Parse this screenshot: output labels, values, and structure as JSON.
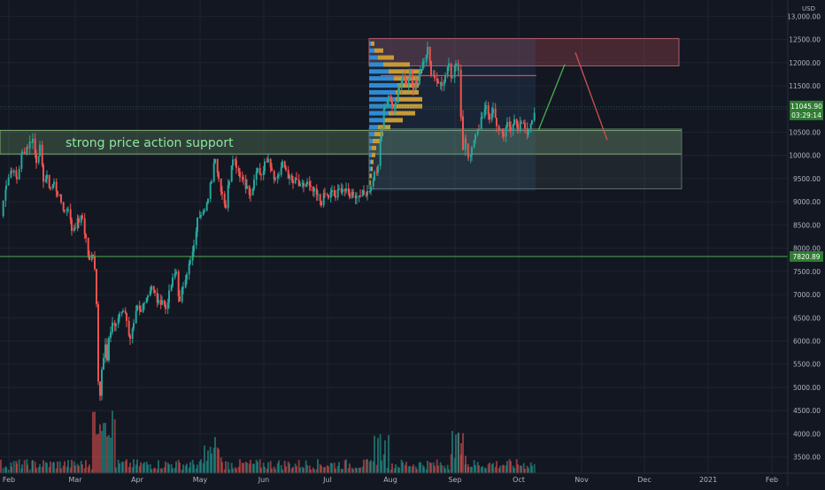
{
  "chart_data": {
    "type": "candlestick",
    "symbol_currency": "USD",
    "annotation": "strong price action support",
    "x_labels": [
      "Feb",
      "Mar",
      "Apr",
      "May",
      "Jun",
      "Jul",
      "Aug",
      "Sep",
      "Oct",
      "Nov",
      "Dec",
      "2021",
      "Feb"
    ],
    "y_ticks": [
      13000,
      12500,
      12000,
      11500,
      11000,
      10500,
      10000,
      9500,
      9000,
      8500,
      8000,
      7500,
      7000,
      6500,
      6000,
      5500,
      5000,
      4500,
      4000,
      3500
    ],
    "y_tick_labels": [
      "13,000.00",
      "12500.00",
      "12000.00",
      "11500.00",
      "11000.00",
      "10500.00",
      "10000.00",
      "9500.00",
      "9000.00",
      "8500.00",
      "8000.00",
      "7500.00",
      "7000.00",
      "6500.00",
      "6000.00",
      "5500.00",
      "5000.00",
      "4500.00",
      "4000.00",
      "3500.00"
    ],
    "ylim": [
      3150,
      13350
    ],
    "current_price": {
      "label": "11045.90",
      "value": 11045.9,
      "countdown": "03:29:14"
    },
    "reference_level": {
      "label": "7820.89",
      "value": 7820.89
    },
    "horizontal_line": {
      "value": 11720
    },
    "zones": [
      {
        "name": "support",
        "top": 10540,
        "bottom": 10030
      },
      {
        "name": "resistance",
        "top": 12520,
        "bottom": 11930
      },
      {
        "name": "range",
        "top": 10570,
        "bottom": 9280
      },
      {
        "name": "volume-profile",
        "top": 12520,
        "bottom": 9230
      }
    ],
    "projection": [
      {
        "date_index": 0,
        "price": 10530
      },
      {
        "date_index": 1,
        "price": 11960
      },
      {
        "date_index": 2,
        "price": 12220
      },
      {
        "date_index": 3,
        "price": 10330
      }
    ],
    "price_path": [
      [
        0,
        8700
      ],
      [
        6,
        9400
      ],
      [
        12,
        9700
      ],
      [
        18,
        9500
      ],
      [
        24,
        10050
      ],
      [
        30,
        10200
      ],
      [
        36,
        10350
      ],
      [
        40,
        9900
      ],
      [
        44,
        10150
      ],
      [
        48,
        9500
      ],
      [
        52,
        9500
      ],
      [
        56,
        9300
      ],
      [
        60,
        9400
      ],
      [
        64,
        9200
      ],
      [
        68,
        9000
      ],
      [
        72,
        8800
      ],
      [
        76,
        8900
      ],
      [
        80,
        8400
      ],
      [
        84,
        8500
      ],
      [
        88,
        8600
      ],
      [
        92,
        8650
      ],
      [
        96,
        8200
      ],
      [
        100,
        7700
      ],
      [
        104,
        7900
      ],
      [
        106,
        7600
      ],
      [
        108,
        6800
      ],
      [
        110,
        5200
      ],
      [
        112,
        4900
      ],
      [
        114,
        5400
      ],
      [
        116,
        5600
      ],
      [
        118,
        5900
      ],
      [
        120,
        5500
      ],
      [
        122,
        6100
      ],
      [
        124,
        6200
      ],
      [
        126,
        6400
      ],
      [
        130,
        6300
      ],
      [
        134,
        6600
      ],
      [
        138,
        6700
      ],
      [
        142,
        6500
      ],
      [
        146,
        6000
      ],
      [
        150,
        6300
      ],
      [
        154,
        6700
      ],
      [
        158,
        6600
      ],
      [
        162,
        6900
      ],
      [
        166,
        7000
      ],
      [
        170,
        7200
      ],
      [
        174,
        7000
      ],
      [
        178,
        6800
      ],
      [
        182,
        6900
      ],
      [
        186,
        6700
      ],
      [
        190,
        7000
      ],
      [
        194,
        7300
      ],
      [
        198,
        7500
      ],
      [
        202,
        6800
      ],
      [
        206,
        7200
      ],
      [
        210,
        7500
      ],
      [
        214,
        7700
      ],
      [
        218,
        8000
      ],
      [
        222,
        8600
      ],
      [
        226,
        8800
      ],
      [
        230,
        8900
      ],
      [
        234,
        9000
      ],
      [
        238,
        9500
      ],
      [
        242,
        10000
      ],
      [
        246,
        9500
      ],
      [
        250,
        9200
      ],
      [
        254,
        8900
      ],
      [
        258,
        9500
      ],
      [
        262,
        10000
      ],
      [
        266,
        9800
      ],
      [
        270,
        9600
      ],
      [
        274,
        9500
      ],
      [
        278,
        9300
      ],
      [
        282,
        9100
      ],
      [
        286,
        9400
      ],
      [
        290,
        9700
      ],
      [
        294,
        9600
      ],
      [
        298,
        9800
      ],
      [
        302,
        10000
      ],
      [
        306,
        9700
      ],
      [
        310,
        9500
      ],
      [
        314,
        9600
      ],
      [
        318,
        9800
      ],
      [
        322,
        9700
      ],
      [
        326,
        9500
      ],
      [
        330,
        9400
      ],
      [
        334,
        9450
      ],
      [
        338,
        9300
      ],
      [
        342,
        9350
      ],
      [
        346,
        9400
      ],
      [
        350,
        9250
      ],
      [
        354,
        9200
      ],
      [
        358,
        9100
      ],
      [
        362,
        9000
      ],
      [
        366,
        9150
      ],
      [
        370,
        9100
      ],
      [
        374,
        9200
      ],
      [
        378,
        9100
      ],
      [
        382,
        9250
      ],
      [
        386,
        9300
      ],
      [
        390,
        9200
      ],
      [
        394,
        9150
      ],
      [
        398,
        9200
      ],
      [
        402,
        9100
      ],
      [
        406,
        9200
      ],
      [
        410,
        9150
      ],
      [
        414,
        9250
      ],
      [
        418,
        9300
      ],
      [
        422,
        9600
      ],
      [
        426,
        9700
      ],
      [
        430,
        10600
      ],
      [
        434,
        11100
      ],
      [
        438,
        11300
      ],
      [
        442,
        11000
      ],
      [
        446,
        11200
      ],
      [
        450,
        11500
      ],
      [
        454,
        11700
      ],
      [
        458,
        11600
      ],
      [
        462,
        11800
      ],
      [
        466,
        11400
      ],
      [
        470,
        11600
      ],
      [
        474,
        11900
      ],
      [
        478,
        12100
      ],
      [
        482,
        12300
      ],
      [
        486,
        11800
      ],
      [
        490,
        11700
      ],
      [
        494,
        11600
      ],
      [
        498,
        11500
      ],
      [
        502,
        11700
      ],
      [
        506,
        11900
      ],
      [
        510,
        11600
      ],
      [
        514,
        12000
      ],
      [
        517,
        11900
      ],
      [
        520,
        10800
      ],
      [
        522,
        10100
      ],
      [
        525,
        10300
      ],
      [
        528,
        10000
      ],
      [
        532,
        10100
      ],
      [
        536,
        10400
      ],
      [
        540,
        10600
      ],
      [
        544,
        10900
      ],
      [
        548,
        11000
      ],
      [
        552,
        10800
      ],
      [
        556,
        11000
      ],
      [
        560,
        10700
      ],
      [
        564,
        10500
      ],
      [
        568,
        10400
      ],
      [
        572,
        10700
      ],
      [
        576,
        10600
      ],
      [
        580,
        10800
      ],
      [
        584,
        10500
      ],
      [
        588,
        10700
      ],
      [
        592,
        10600
      ],
      [
        596,
        10500
      ],
      [
        600,
        10800
      ],
      [
        604,
        11046
      ]
    ]
  }
}
